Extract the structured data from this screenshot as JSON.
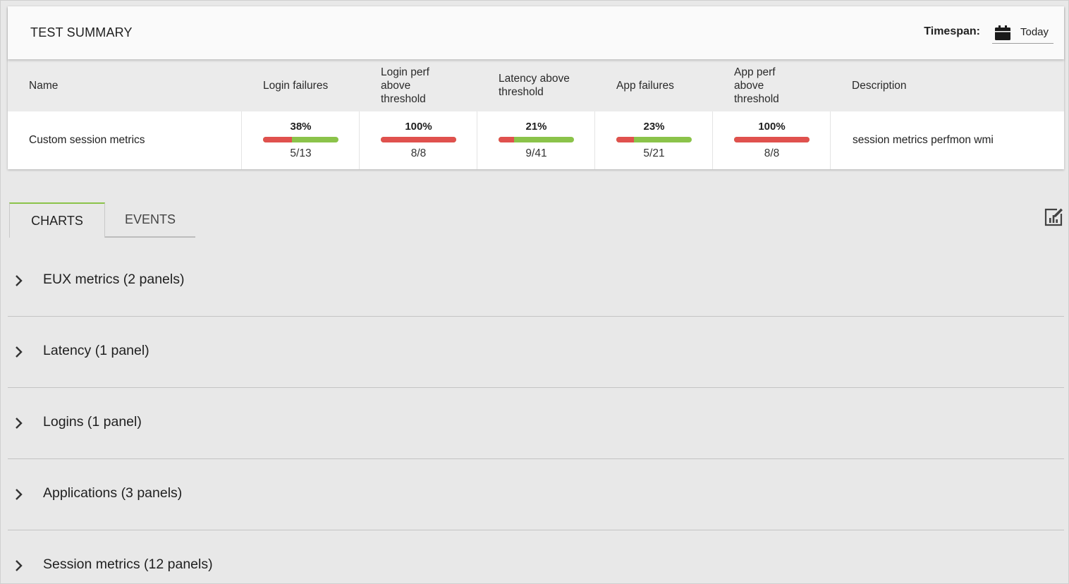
{
  "summary": {
    "title": "TEST SUMMARY",
    "timespan_label": "Timespan:",
    "timespan_value": "Today",
    "columns": {
      "name": "Name",
      "login_failures": "Login failures",
      "login_perf": "Login perf above threshold",
      "latency": "Latency above threshold",
      "app_failures": "App failures",
      "app_perf": "App perf above threshold",
      "description": "Description"
    },
    "row": {
      "name": "Custom session metrics",
      "login_failures": {
        "pct": "38%",
        "ratio": "5/13",
        "fail_fraction": 0.38
      },
      "login_perf": {
        "pct": "100%",
        "ratio": "8/8",
        "fail_fraction": 1.0
      },
      "latency": {
        "pct": "21%",
        "ratio": "9/41",
        "fail_fraction": 0.21
      },
      "app_failures": {
        "pct": "23%",
        "ratio": "5/21",
        "fail_fraction": 0.23
      },
      "app_perf": {
        "pct": "100%",
        "ratio": "8/8",
        "fail_fraction": 1.0
      },
      "description": "session metrics perfmon wmi"
    }
  },
  "tabs": [
    {
      "label": "CHARTS",
      "active": true
    },
    {
      "label": "EVENTS",
      "active": false
    }
  ],
  "sections": [
    {
      "title": "EUX metrics (2 panels)"
    },
    {
      "title": "Latency (1 panel)"
    },
    {
      "title": "Logins (1 panel)"
    },
    {
      "title": "Applications (3 panels)"
    },
    {
      "title": "Session metrics (12 panels)"
    }
  ],
  "colors": {
    "fail": "#e0514e",
    "pass": "#8bc34a",
    "accent": "#8bc34a"
  },
  "icons": {
    "timespan": "calendar-icon",
    "report": "edit-report-icon",
    "expand": "chevron-right-icon"
  }
}
